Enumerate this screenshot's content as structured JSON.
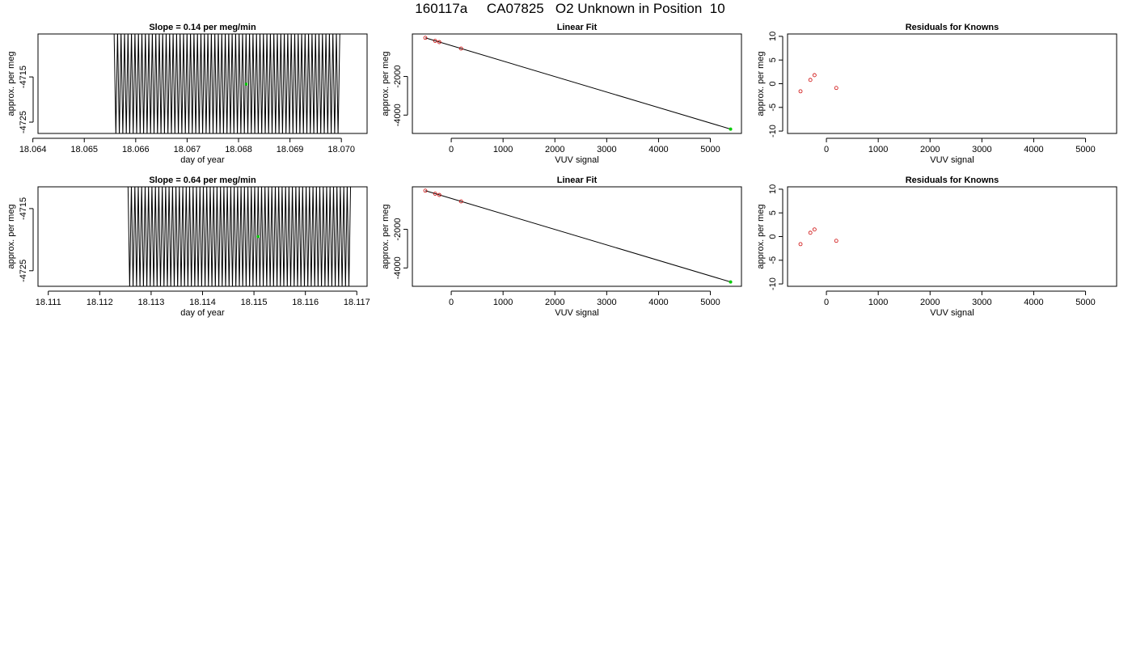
{
  "title": "160117a     CA07825   O2 Unknown in Position  10",
  "colors": {
    "line": "#000000",
    "unknown_point": "#00cc00",
    "known_point": "#cc0000"
  },
  "chart_data": [
    {
      "type": "line",
      "title": "Slope =  0.14  per meg/min",
      "xlabel": "day of year",
      "ylabel": "approx. per meg",
      "xlim": [
        18.0641,
        18.0705
      ],
      "ylim": [
        -4727.5,
        -4705.5
      ],
      "xticks": [
        "18.064",
        "18.065",
        "18.066",
        "18.067",
        "18.068",
        "18.069",
        "18.070"
      ],
      "xtick_values": [
        18.064,
        18.065,
        18.066,
        18.067,
        18.068,
        18.069,
        18.07
      ],
      "yticks": [
        "-4725",
        "-4715"
      ],
      "ytick_values": [
        -4725,
        -4715
      ],
      "series": [
        {
          "x_start": 18.06558,
          "x_end": 18.06997,
          "y_high": -4705.5,
          "y_low": -4727.5,
          "cycles": 65
        }
      ],
      "highlight_point": {
        "x": 18.06815,
        "y": -4716.6
      }
    },
    {
      "type": "scatter",
      "title": "Linear Fit",
      "xlabel": "VUV signal",
      "ylabel": "approx. per meg",
      "xlim": [
        -750,
        5600
      ],
      "ylim": [
        -4950,
        200
      ],
      "xticks": [
        "0",
        "1000",
        "2000",
        "3000",
        "4000",
        "5000"
      ],
      "xtick_values": [
        0,
        1000,
        2000,
        3000,
        4000,
        5000
      ],
      "yticks": [
        "-4000",
        "-2000"
      ],
      "ytick_values": [
        -4000,
        -2000
      ],
      "fit_line": {
        "x": [
          -500,
          5390
        ],
        "y": [
          0,
          -4725
        ]
      },
      "known_points": {
        "x": [
          -500,
          -310,
          -230,
          190
        ],
        "y": [
          0,
          -157,
          -221,
          -555
        ]
      },
      "unknown_point": {
        "x": 5390,
        "y": -4725
      }
    },
    {
      "type": "scatter",
      "title": "Residuals for Knowns",
      "xlabel": "VUV signal",
      "ylabel": "approx. per meg",
      "xlim": [
        -750,
        5600
      ],
      "ylim": [
        -10.5,
        10.5
      ],
      "xticks": [
        "0",
        "1000",
        "2000",
        "3000",
        "4000",
        "5000"
      ],
      "xtick_values": [
        0,
        1000,
        2000,
        3000,
        4000,
        5000
      ],
      "yticks": [
        "-10",
        "-5",
        "0",
        "5",
        "10"
      ],
      "ytick_values": [
        -10,
        -5,
        0,
        5,
        10
      ],
      "known_points": {
        "x": [
          -500,
          -310,
          -230,
          190
        ],
        "y": [
          -1.6,
          0.8,
          1.8,
          -0.9
        ]
      }
    },
    {
      "type": "line",
      "title": "Slope =  0.64  per meg/min",
      "xlabel": "day of year",
      "ylabel": "approx. per meg",
      "xlim": [
        18.1108,
        18.1172
      ],
      "ylim": [
        -4727.5,
        -4711.5
      ],
      "xticks": [
        "18.111",
        "18.112",
        "18.113",
        "18.114",
        "18.115",
        "18.116",
        "18.117"
      ],
      "xtick_values": [
        18.111,
        18.112,
        18.113,
        18.114,
        18.115,
        18.116,
        18.117
      ],
      "yticks": [
        "-4725",
        "-4715"
      ],
      "ytick_values": [
        -4725,
        -4715
      ],
      "series": [
        {
          "x_start": 18.11255,
          "x_end": 18.11688,
          "y_high": -4711.5,
          "y_low": -4727.5,
          "cycles": 65
        }
      ],
      "highlight_point": {
        "x": 18.11508,
        "y": -4719.5
      }
    },
    {
      "type": "scatter",
      "title": "Linear Fit",
      "xlabel": "VUV signal",
      "ylabel": "approx. per meg",
      "xlim": [
        -750,
        5600
      ],
      "ylim": [
        -4950,
        200
      ],
      "xticks": [
        "0",
        "1000",
        "2000",
        "3000",
        "4000",
        "5000"
      ],
      "xtick_values": [
        0,
        1000,
        2000,
        3000,
        4000,
        5000
      ],
      "yticks": [
        "-4000",
        "-2000"
      ],
      "ytick_values": [
        -4000,
        -2000
      ],
      "fit_line": {
        "x": [
          -500,
          5390
        ],
        "y": [
          0,
          -4725
        ]
      },
      "known_points": {
        "x": [
          -500,
          -310,
          -230,
          190
        ],
        "y": [
          0,
          -157,
          -221,
          -555
        ]
      },
      "unknown_point": {
        "x": 5390,
        "y": -4725
      }
    },
    {
      "type": "scatter",
      "title": "Residuals for Knowns",
      "xlabel": "VUV signal",
      "ylabel": "approx. per meg",
      "xlim": [
        -750,
        5600
      ],
      "ylim": [
        -10.5,
        10.5
      ],
      "xticks": [
        "0",
        "1000",
        "2000",
        "3000",
        "4000",
        "5000"
      ],
      "xtick_values": [
        0,
        1000,
        2000,
        3000,
        4000,
        5000
      ],
      "yticks": [
        "-10",
        "-5",
        "0",
        "5",
        "10"
      ],
      "ytick_values": [
        -10,
        -5,
        0,
        5,
        10
      ],
      "known_points": {
        "x": [
          -500,
          -310,
          -230,
          190
        ],
        "y": [
          -1.6,
          0.8,
          1.5,
          -0.9
        ]
      }
    }
  ]
}
